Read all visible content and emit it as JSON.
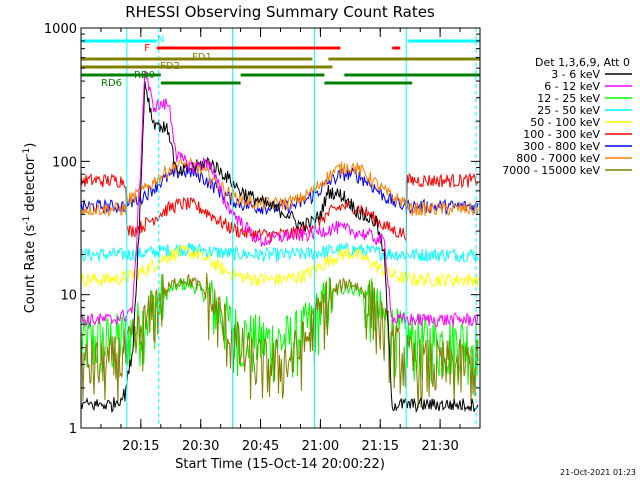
{
  "chart_data": {
    "type": "line",
    "title": "RHESSI Observing Summary Count Rates",
    "xlabel": "Start Time (15-Oct-14 20:00:22)",
    "ylabel": "Count Rate (s⁻¹ detector⁻¹)",
    "ylabel_parts": {
      "main": "Count Rate (s",
      "sup1": "-1",
      "mid": " detector",
      "sup2": "-1",
      "end": ")"
    },
    "y_scale": "log",
    "ylim": [
      1,
      1000
    ],
    "xlim_minutes": [
      0,
      100
    ],
    "x_ticks": [
      {
        "label": "20:15",
        "t": 15
      },
      {
        "label": "20:30",
        "t": 30
      },
      {
        "label": "20:45",
        "t": 45
      },
      {
        "label": "21:00",
        "t": 60
      },
      {
        "label": "21:15",
        "t": 75
      },
      {
        "label": "21:30",
        "t": 90
      }
    ],
    "y_ticks": [
      {
        "label": "1",
        "v": 1
      },
      {
        "label": "10",
        "v": 10
      },
      {
        "label": "100",
        "v": 100
      },
      {
        "label": "1000",
        "v": 1000
      }
    ],
    "legend_header": "Det 1,3,6,9, Att 0",
    "legend_placement": "right",
    "series": [
      {
        "name": "3 - 6 keV",
        "color": "#000000",
        "kind": "soft",
        "pts": [
          [
            0,
            1.5
          ],
          [
            8,
            1.5
          ],
          [
            11,
            1.8
          ],
          [
            13,
            4
          ],
          [
            15,
            60
          ],
          [
            16,
            400
          ],
          [
            18,
            200
          ],
          [
            22,
            170
          ],
          [
            24,
            80
          ],
          [
            28,
            90
          ],
          [
            32,
            100
          ],
          [
            36,
            80
          ],
          [
            40,
            60
          ],
          [
            45,
            50
          ],
          [
            52,
            40
          ],
          [
            55,
            33
          ],
          [
            58,
            35
          ],
          [
            60,
            40
          ],
          [
            62,
            60
          ],
          [
            66,
            55
          ],
          [
            70,
            40
          ],
          [
            74,
            35
          ],
          [
            76,
            20
          ],
          [
            78,
            1.5
          ],
          [
            100,
            1.5
          ]
        ]
      },
      {
        "name": "6 - 12 keV",
        "color": "#ff00ff",
        "kind": "soft",
        "pts": [
          [
            0,
            6.5
          ],
          [
            8,
            6.5
          ],
          [
            11,
            7
          ],
          [
            13,
            8
          ],
          [
            15,
            100
          ],
          [
            16,
            500
          ],
          [
            18,
            260
          ],
          [
            22,
            270
          ],
          [
            24,
            110
          ],
          [
            28,
            90
          ],
          [
            32,
            100
          ],
          [
            36,
            50
          ],
          [
            40,
            35
          ],
          [
            45,
            25
          ],
          [
            52,
            28
          ],
          [
            56,
            28
          ],
          [
            60,
            30
          ],
          [
            64,
            32
          ],
          [
            68,
            30
          ],
          [
            72,
            28
          ],
          [
            76,
            25
          ],
          [
            78,
            6.5
          ],
          [
            100,
            6.5
          ]
        ]
      },
      {
        "name": "12 - 25 keV",
        "color": "#00ff00",
        "kind": "orbit",
        "base": 4.5,
        "peak": 12
      },
      {
        "name": "25 - 50 keV",
        "color": "#00ffff",
        "kind": "orbit",
        "base": 20,
        "peak": 22
      },
      {
        "name": "50 - 100 keV",
        "color": "#ffff00",
        "kind": "orbit",
        "base": 13,
        "peak": 21
      },
      {
        "name": "100 - 300 keV",
        "color": "#ff0000",
        "kind": "orbit",
        "base": 28,
        "peak": 48,
        "day": 72
      },
      {
        "name": "300 - 800 keV",
        "color": "#0000ff",
        "kind": "orbit",
        "base": 45,
        "peak": 84,
        "day": 46
      },
      {
        "name": "800 - 7000 keV",
        "color": "#ff8000",
        "kind": "orbit",
        "base": 48,
        "peak": 95,
        "day": 44
      },
      {
        "name": "7000 - 15000 keV",
        "color": "#808000",
        "kind": "orbit",
        "base": 3,
        "peak": 13
      }
    ],
    "flag_bars": [
      {
        "label": "N",
        "color": "#00ffff",
        "segments": [
          [
            0,
            19
          ],
          [
            82,
            100
          ]
        ]
      },
      {
        "label": "F",
        "color": "#ff0000",
        "segments": [
          [
            19,
            65
          ],
          [
            78,
            80
          ]
        ]
      },
      {
        "label": "FD1",
        "color": "#808000",
        "segments": [
          [
            0,
            58
          ],
          [
            62,
            100
          ]
        ]
      },
      {
        "label": "FD2",
        "color": "#808000",
        "segments": [
          [
            0,
            63
          ]
        ]
      },
      {
        "label": "RD0",
        "color": "#008000",
        "segments": [
          [
            0,
            20
          ],
          [
            40,
            61
          ],
          [
            66,
            100
          ]
        ]
      },
      {
        "label": "RD6",
        "color": "#008000",
        "segments": [
          [
            20,
            40
          ],
          [
            61,
            83
          ]
        ]
      }
    ],
    "vlines": [
      {
        "t": 11.5,
        "style": "solid"
      },
      {
        "t": 19.5,
        "style": "dashed"
      },
      {
        "t": 38,
        "style": "solid"
      },
      {
        "t": 58.5,
        "style": "solid"
      },
      {
        "t": 81.5,
        "style": "solid"
      },
      {
        "t": 99,
        "style": "dashed"
      }
    ]
  },
  "footer": {
    "timestamp": "21-Oct-2021 01:23"
  }
}
